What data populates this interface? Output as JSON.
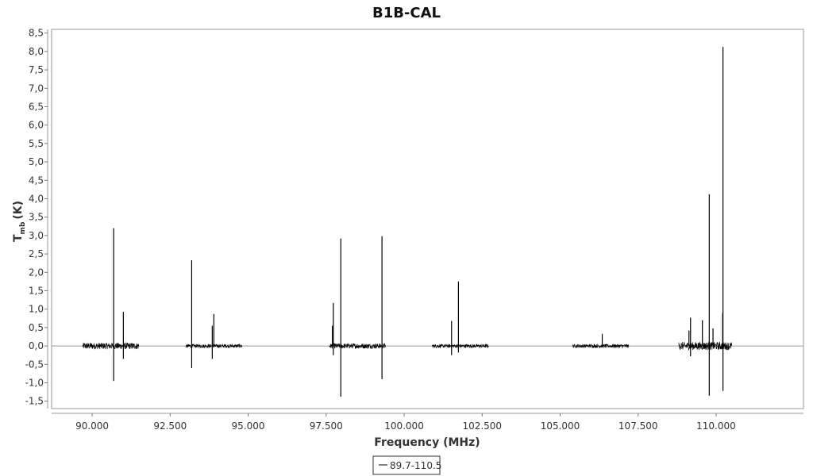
{
  "chart_data": {
    "type": "line",
    "title": "B1B-CAL",
    "xlabel": "Frequency (MHz)",
    "ylabel_main": "T",
    "ylabel_sub": "mb",
    "ylabel_unit": "(K)",
    "xlim": [
      88700,
      112800
    ],
    "ylim": [
      -1.7,
      8.6
    ],
    "x_ticks": [
      90000,
      92500,
      95000,
      97500,
      100000,
      102500,
      105000,
      107500,
      110000
    ],
    "x_tick_labels": [
      "90.000",
      "92.500",
      "95.000",
      "97.500",
      "100.000",
      "102.500",
      "105.000",
      "107.500",
      "110.000"
    ],
    "y_ticks": [
      -1.5,
      -1.0,
      -0.5,
      0.0,
      0.5,
      1.0,
      1.5,
      2.0,
      2.5,
      3.0,
      3.5,
      4.0,
      4.5,
      5.0,
      5.5,
      6.0,
      6.5,
      7.0,
      7.5,
      8.0,
      8.5
    ],
    "y_tick_labels": [
      "-1,5",
      "-1,0",
      "-0,5",
      "0,0",
      "0,5",
      "1,0",
      "1,5",
      "2,0",
      "2,5",
      "3,0",
      "3,5",
      "4,0",
      "4,5",
      "5,0",
      "5,5",
      "6,0",
      "6,5",
      "7,0",
      "7,5",
      "8,0",
      "8,5"
    ],
    "legend": {
      "position": "bottom-center"
    },
    "series": [
      {
        "name": "89.7-110.5",
        "color": "#000000",
        "segments": [
          {
            "x_range": [
              89700,
              91500
            ],
            "noise": 0.09
          },
          {
            "x_range": [
              93000,
              94800
            ],
            "noise": 0.05
          },
          {
            "x_range": [
              97600,
              99400
            ],
            "noise": 0.07
          },
          {
            "x_range": [
              100900,
              102700
            ],
            "noise": 0.05
          },
          {
            "x_range": [
              105400,
              107200
            ],
            "noise": 0.05
          },
          {
            "x_range": [
              108800,
              110500
            ],
            "noise": 0.11
          }
        ],
        "peaks": [
          {
            "x": 90690,
            "y": 3.2
          },
          {
            "x": 90690,
            "y": -0.95
          },
          {
            "x": 91000,
            "y": 0.93
          },
          {
            "x": 91000,
            "y": -0.35
          },
          {
            "x": 93190,
            "y": 2.33
          },
          {
            "x": 93190,
            "y": -0.6
          },
          {
            "x": 93850,
            "y": 0.55
          },
          {
            "x": 93900,
            "y": 0.87
          },
          {
            "x": 93850,
            "y": -0.35
          },
          {
            "x": 97700,
            "y": 0.55
          },
          {
            "x": 97730,
            "y": 1.17
          },
          {
            "x": 97730,
            "y": -0.25
          },
          {
            "x": 97970,
            "y": 2.92
          },
          {
            "x": 97970,
            "y": -1.38
          },
          {
            "x": 99290,
            "y": 2.98
          },
          {
            "x": 99290,
            "y": -0.9
          },
          {
            "x": 101520,
            "y": 0.68
          },
          {
            "x": 101520,
            "y": -0.25
          },
          {
            "x": 101740,
            "y": 1.75
          },
          {
            "x": 101740,
            "y": -0.18
          },
          {
            "x": 106350,
            "y": 0.33
          },
          {
            "x": 109130,
            "y": 0.42
          },
          {
            "x": 109180,
            "y": 0.77
          },
          {
            "x": 109180,
            "y": -0.28
          },
          {
            "x": 109560,
            "y": 0.7
          },
          {
            "x": 109780,
            "y": 4.12
          },
          {
            "x": 109780,
            "y": -1.35
          },
          {
            "x": 109900,
            "y": 0.48
          },
          {
            "x": 110220,
            "y": 8.12
          },
          {
            "x": 110220,
            "y": -1.22
          },
          {
            "x": 110210,
            "y": 0.9
          }
        ]
      }
    ]
  }
}
